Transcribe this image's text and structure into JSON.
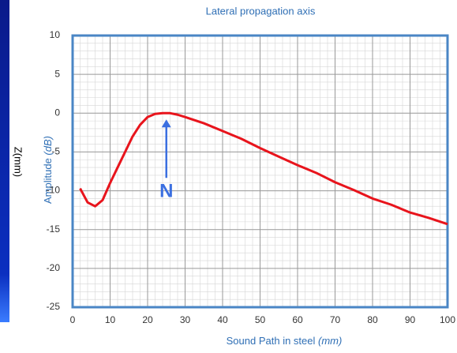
{
  "chart_data": {
    "type": "line",
    "title": "Lateral propagation axis",
    "x_label": "Sound Path in steel",
    "x_label_unit": "(mm)",
    "y_label": "Amplitude",
    "y_label_unit": "(dB)",
    "side_label": "Z(mm)",
    "x": [
      2,
      4,
      6,
      8,
      10,
      12,
      14,
      16,
      18,
      20,
      22,
      24,
      26,
      28,
      30,
      35,
      40,
      45,
      50,
      55,
      60,
      65,
      70,
      75,
      80,
      85,
      90,
      95,
      100
    ],
    "series": [
      {
        "name": "Amplitude",
        "color": "#e8141c",
        "values": [
          -9.7,
          -11.5,
          -12,
          -11.2,
          -9,
          -7,
          -5,
          -3,
          -1.5,
          -0.5,
          -0.1,
          0,
          0,
          -0.2,
          -0.5,
          -1.3,
          -2.3,
          -3.3,
          -4.5,
          -5.6,
          -6.7,
          -7.7,
          -8.9,
          -9.9,
          -11,
          -11.8,
          -12.8,
          -13.5,
          -14.3
        ]
      }
    ],
    "xlim": [
      0,
      100
    ],
    "xticks": [
      0,
      10,
      20,
      30,
      40,
      50,
      60,
      70,
      80,
      90,
      100
    ],
    "ylim": [
      -25,
      10
    ],
    "yticks": [
      -25,
      -20,
      -15,
      -10,
      -5,
      0,
      5,
      10
    ],
    "grid": true,
    "annotations": [
      {
        "text": "N",
        "x": 25,
        "y": 0
      }
    ]
  }
}
